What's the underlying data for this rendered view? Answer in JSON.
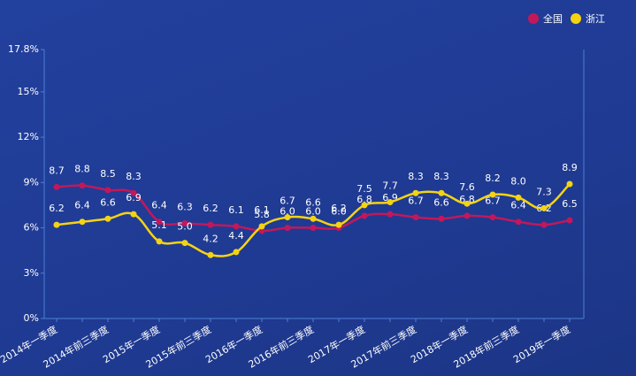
{
  "chart_data": {
    "type": "line",
    "categories": [
      "2014年一季度",
      null,
      "2014年前三季度",
      null,
      "2015年一季度",
      null,
      "2015年前三季度",
      null,
      "2016年一季度",
      null,
      "2016年前三季度",
      null,
      "2017年一季度",
      null,
      "2017年前三季度",
      null,
      "2018年一季度",
      null,
      "2018年前三季度",
      null,
      "2019年一季度"
    ],
    "series": [
      {
        "name": "全国",
        "color": "#c2185b",
        "values": [
          8.7,
          8.8,
          8.5,
          8.3,
          6.4,
          6.3,
          6.2,
          6.1,
          5.8,
          6.0,
          6.0,
          6.0,
          6.8,
          6.9,
          6.7,
          6.6,
          6.8,
          6.7,
          6.4,
          6.2,
          6.5
        ],
        "value_labels": [
          "8.7",
          "8.8",
          "8.5",
          "8.3",
          "6.4",
          "6.3",
          "6.2",
          "6.1",
          "5.8",
          "6.0",
          "6.0",
          "6.0",
          "6.8",
          "6.9",
          "6.7",
          "6.6",
          "6.8",
          "6.7",
          "6.4",
          "6.2",
          "6.5"
        ]
      },
      {
        "name": "浙江",
        "color": "#f5d313",
        "values": [
          6.2,
          6.4,
          6.6,
          6.9,
          5.1,
          5.0,
          4.2,
          4.4,
          6.1,
          6.7,
          6.6,
          6.2,
          7.5,
          7.7,
          8.3,
          8.3,
          7.6,
          8.2,
          8.0,
          7.3,
          8.9
        ],
        "value_labels": [
          "6.2",
          "6.4",
          "6.6",
          "6.9",
          "5.1",
          "5.0",
          "4.2",
          "4.4",
          "6.1",
          "6.7",
          "6.6",
          "6.2",
          "7.5",
          "7.7",
          "8.3",
          "8.3",
          "7.6",
          "8.2",
          "8.0",
          "7.3",
          "8.9"
        ]
      }
    ],
    "ylim": [
      0,
      17.8
    ],
    "yticks": [
      {
        "value": 0,
        "label": "0%"
      },
      {
        "value": 3,
        "label": "3%"
      },
      {
        "value": 6,
        "label": "6%"
      },
      {
        "value": 9,
        "label": "9%"
      },
      {
        "value": 12,
        "label": "12%"
      },
      {
        "value": 15,
        "label": "15%"
      },
      {
        "value": 17.8,
        "label": "17.8%"
      }
    ],
    "grid": false,
    "legend": "top-right"
  }
}
